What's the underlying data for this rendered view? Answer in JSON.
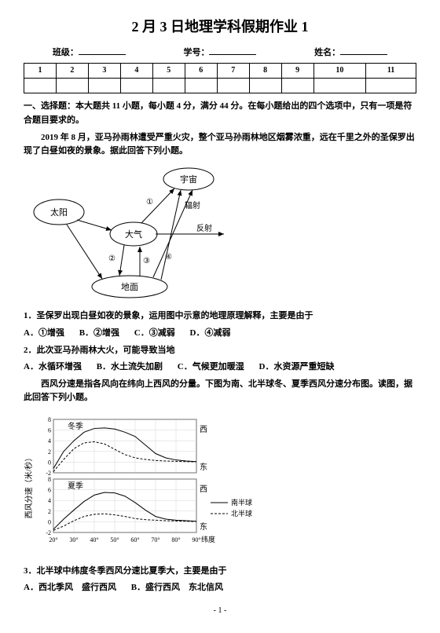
{
  "title": "2 月 3 日地理学科假期作业 1",
  "header": {
    "class_label": "班级：",
    "id_label": "学号：",
    "name_label": "姓名："
  },
  "grid": {
    "cols": [
      "1",
      "2",
      "3",
      "4",
      "5",
      "6",
      "7",
      "8",
      "9",
      "10",
      "11"
    ]
  },
  "section1_intro": "一、选择题：本大题共 11 小题，每小题 4 分，满分 44 分。在每小题给出的四个选项中，只有一项是符合题目要求的。",
  "passage1": "2019 年 8 月，亚马孙雨林遭受严重火灾，整个亚马孙雨林地区烟雾浓重，远在千里之外的圣保罗出现了白昼如夜的景象。据此回答下列小题。",
  "diagram1": {
    "nodes": {
      "sun": "太阳",
      "universe": "宇宙",
      "atmosphere": "大气",
      "ground": "地面"
    },
    "labels": {
      "radiation": "辐射",
      "reflection": "反射",
      "n1": "①",
      "n2": "②",
      "n3": "③",
      "n4": "④"
    },
    "colors": {
      "stroke": "#000000",
      "fill": "#ffffff"
    }
  },
  "q1": {
    "text": "1．圣保罗出现白昼如夜的景象，运用图中示意的地理原理解释，主要是由于",
    "opts": {
      "A": "A．①增强",
      "B": "B．②增强",
      "C": "C．③减弱",
      "D": "D．④减弱"
    }
  },
  "q2": {
    "text": "2．此次亚马孙雨林大火，可能导致当地",
    "opts": {
      "A": "A．水循环增强",
      "B": "B．水土流失加剧",
      "C": "C．气候更加暖湿",
      "D": "D．水资源严重短缺"
    }
  },
  "passage2": "西风分速是指各风向在纬向上西风的分量。下图为南、北半球冬、夏季西风分速分布图。读图，据此回答下列小题。",
  "chart": {
    "type": "line",
    "panels": [
      {
        "title": "冬季",
        "west": "西",
        "east": "东"
      },
      {
        "title": "夏季",
        "west": "西",
        "east": "东"
      }
    ],
    "ylabel": "西风分速（米/秒）",
    "yticks": [
      -2,
      0,
      2,
      4,
      6,
      8
    ],
    "ylim": [
      -2,
      8
    ],
    "xticks": [
      "20°",
      "30°",
      "40°",
      "50°",
      "60°",
      "70°",
      "80°",
      "90°"
    ],
    "xlabel": "纬度",
    "xlim": [
      20,
      90
    ],
    "legend": {
      "south": "南半球",
      "north": "北半球"
    },
    "colors": {
      "axis": "#000000",
      "grid": "#c0c0c0",
      "south_line": "#000000",
      "north_line": "#000000"
    },
    "series": {
      "winter_south": [
        [
          20,
          -1.2
        ],
        [
          25,
          2
        ],
        [
          30,
          4
        ],
        [
          35,
          5.6
        ],
        [
          40,
          6.3
        ],
        [
          45,
          6.4
        ],
        [
          50,
          6.2
        ],
        [
          55,
          5.6
        ],
        [
          60,
          4.8
        ],
        [
          65,
          3.2
        ],
        [
          70,
          1.6
        ],
        [
          75,
          0.8
        ],
        [
          80,
          0.4
        ],
        [
          85,
          0.2
        ],
        [
          90,
          0.1
        ]
      ],
      "winter_north": [
        [
          20,
          -1.8
        ],
        [
          25,
          0.5
        ],
        [
          30,
          2.5
        ],
        [
          35,
          3.6
        ],
        [
          40,
          3.8
        ],
        [
          45,
          3.4
        ],
        [
          50,
          2.4
        ],
        [
          55,
          1.4
        ],
        [
          60,
          0.8
        ],
        [
          65,
          0.5
        ],
        [
          70,
          0.3
        ],
        [
          75,
          0.2
        ],
        [
          80,
          0.15
        ],
        [
          85,
          0.1
        ],
        [
          90,
          0.05
        ]
      ],
      "summer_south": [
        [
          20,
          -1.4
        ],
        [
          25,
          0.5
        ],
        [
          30,
          2.2
        ],
        [
          35,
          3.8
        ],
        [
          40,
          5
        ],
        [
          45,
          5.5
        ],
        [
          50,
          5.4
        ],
        [
          55,
          4.8
        ],
        [
          60,
          3.6
        ],
        [
          65,
          2.2
        ],
        [
          70,
          1
        ],
        [
          75,
          0.5
        ],
        [
          80,
          0.3
        ],
        [
          85,
          0.2
        ],
        [
          90,
          0.1
        ]
      ],
      "summer_north": [
        [
          20,
          -1.6
        ],
        [
          25,
          -0.8
        ],
        [
          30,
          0.2
        ],
        [
          35,
          1
        ],
        [
          40,
          1.4
        ],
        [
          45,
          1.5
        ],
        [
          50,
          1.3
        ],
        [
          55,
          1
        ],
        [
          60,
          0.6
        ],
        [
          65,
          0.4
        ],
        [
          70,
          0.3
        ],
        [
          75,
          0.2
        ],
        [
          80,
          0.15
        ],
        [
          85,
          0.1
        ],
        [
          90,
          0.05
        ]
      ]
    }
  },
  "q3": {
    "text": "3．北半球中纬度冬季西风分速比夏季大，主要是由于",
    "opts": {
      "A": "A．西北季风　盛行西风",
      "B": "B．盛行西风　东北信风"
    }
  },
  "page": "- 1 -"
}
